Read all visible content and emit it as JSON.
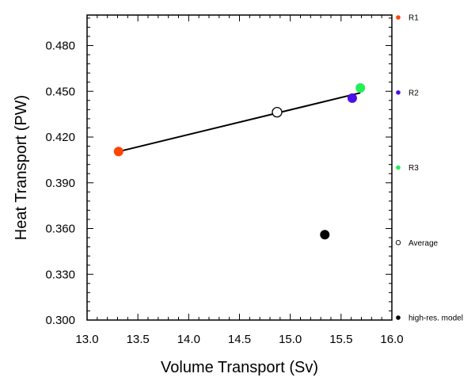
{
  "chart_data": {
    "type": "scatter",
    "xlabel": "Volume Transport (Sv)",
    "ylabel": "Heat Transport (PW)",
    "xlim": [
      13.0,
      16.0
    ],
    "ylim": [
      0.3,
      0.5
    ],
    "x_ticks": [
      "13.0",
      "13.5",
      "14.0",
      "14.5",
      "15.0",
      "15.5",
      "16.0"
    ],
    "y_ticks": [
      "0.300",
      "0.330",
      "0.360",
      "0.390",
      "0.420",
      "0.450",
      "0.480"
    ],
    "x_tick_values": [
      13.0,
      13.5,
      14.0,
      14.5,
      15.0,
      15.5,
      16.0
    ],
    "y_tick_values": [
      0.3,
      0.33,
      0.36,
      0.39,
      0.42,
      0.45,
      0.48
    ],
    "grid": false,
    "legend_placement": "right",
    "series": [
      {
        "name": "R1",
        "x": 13.31,
        "y": 0.4105,
        "color": "#ff4500",
        "marker": "filled-circle"
      },
      {
        "name": "R2",
        "x": 15.61,
        "y": 0.4455,
        "color": "#4b0fe8",
        "marker": "filled-circle"
      },
      {
        "name": "R3",
        "x": 15.69,
        "y": 0.4522,
        "color": "#22ee55",
        "marker": "filled-circle"
      },
      {
        "name": "Average",
        "x": 14.87,
        "y": 0.4363,
        "color": "#000000",
        "marker": "open-circle"
      },
      {
        "name": "high-res. model",
        "x": 15.34,
        "y": 0.356,
        "color": "#000000",
        "marker": "filled-circle"
      }
    ],
    "regression_line": {
      "x": [
        13.31,
        15.69
      ],
      "y": [
        0.4105,
        0.449
      ],
      "color": "#000000"
    }
  }
}
